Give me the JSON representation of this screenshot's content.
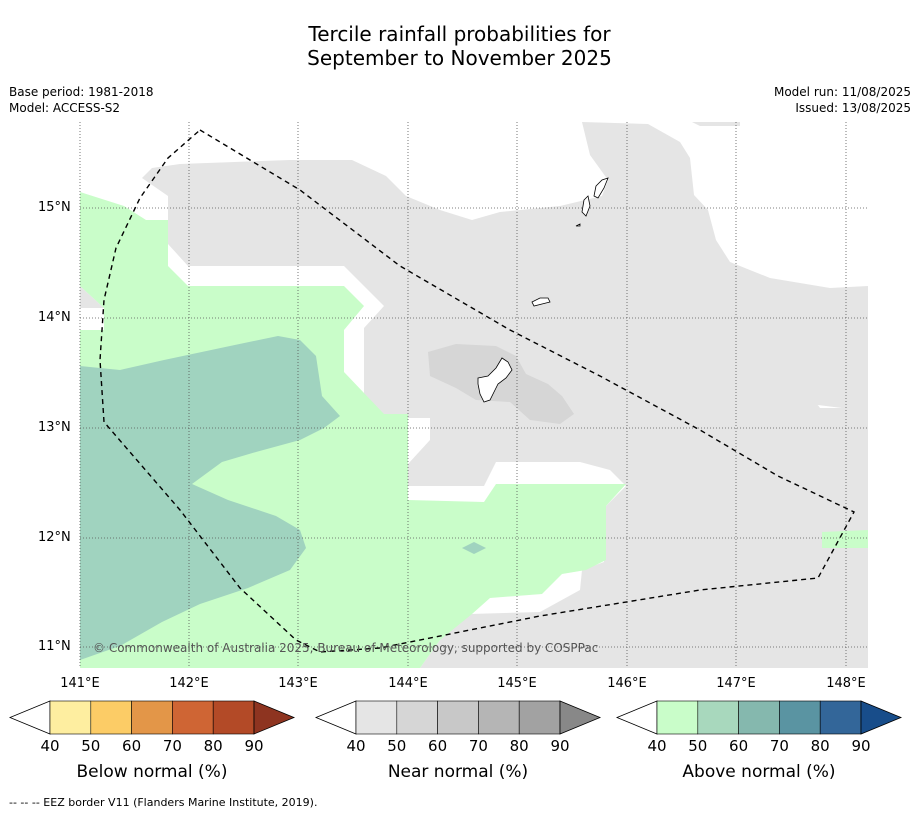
{
  "title": {
    "line1": "Tercile rainfall probabilities for",
    "line2": "September to November 2025"
  },
  "info": {
    "base_period": "Base period: 1981-2018",
    "model": "Model: ACCESS-S2",
    "model_run": "Model run: 11/08/2025",
    "issued": "Issued: 13/08/2025"
  },
  "map": {
    "latitude_labels": [
      "15°N",
      "14°N",
      "13°N",
      "12°N",
      "11°N"
    ],
    "longitude_labels": [
      "141°E",
      "142°E",
      "143°E",
      "144°E",
      "145°E",
      "146°E",
      "147°E",
      "148°E"
    ],
    "copyright": "© Commonwealth of Australia 2025, Bureau of Meteorology, supported by COSPPac",
    "colors": {
      "near_normal_40": "#e5e5e5",
      "near_normal_50": "#d6d6d6",
      "above_normal_40": "#c9fdc9",
      "above_normal_50": "#a0d3bf"
    }
  },
  "colorbars": [
    {
      "label": "Below normal (%)",
      "ticks": [
        "40",
        "50",
        "60",
        "70",
        "80",
        "90"
      ],
      "colors": [
        "#feeea0",
        "#fccc66",
        "#e39648",
        "#cf6534",
        "#b34a27",
        "#8e3420"
      ]
    },
    {
      "label": "Near normal (%)",
      "ticks": [
        "40",
        "50",
        "60",
        "70",
        "80",
        "90"
      ],
      "colors": [
        "#e5e5e5",
        "#d6d6d6",
        "#c8c8c8",
        "#b5b5b5",
        "#a2a2a2",
        "#888888"
      ]
    },
    {
      "label": "Above normal (%)",
      "ticks": [
        "40",
        "50",
        "60",
        "70",
        "80",
        "90"
      ],
      "colors": [
        "#c9fdc9",
        "#a8d8bd",
        "#85b8ae",
        "#5a94a2",
        "#336699",
        "#184d8a"
      ]
    }
  ],
  "legend": {
    "eez": "-- -- -- EEZ border V11 (Flanders Marine Institute, 2019)."
  }
}
